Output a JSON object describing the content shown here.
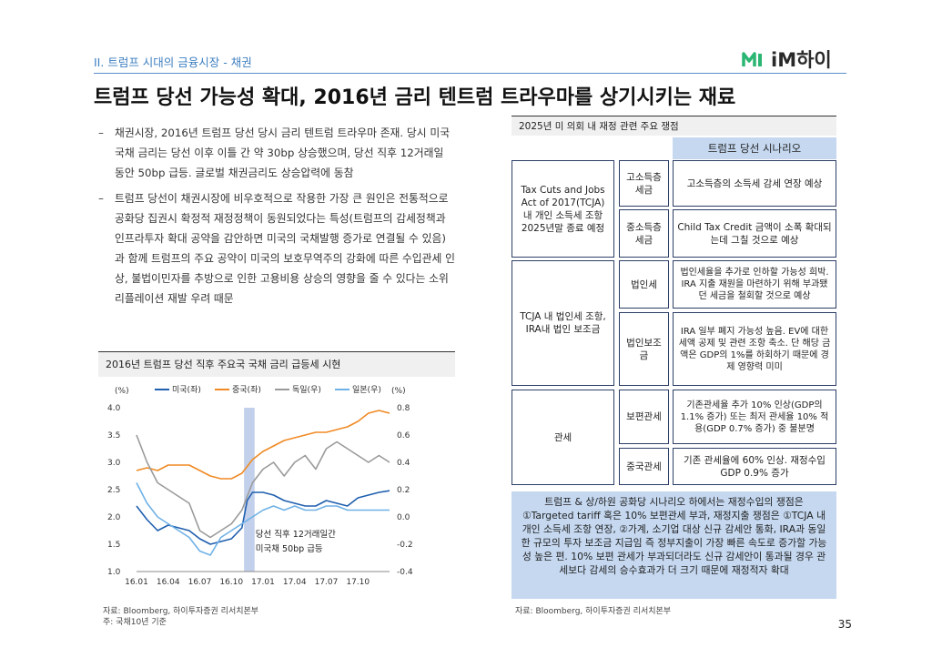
{
  "header": {
    "section": "II. 트럼프 시대의 금융시장 - 채권",
    "logo_text": "iM하이",
    "title": "트럼프 당선 가능성 확대, 2016년 금리 텐트럼 트라우마를 상기시키는 재료"
  },
  "bullets": [
    "채권시장, 2016년 트럼프 당선 당시 금리 텐트럼 트라우마 존재. 당시 미국 국채 금리는 당선 이후 이틀 간 약 30bp 상승했으며, 당선 직후 12거래일 동안 50bp 급등. 글로벌 채권금리도 상승압력에 동참",
    "트럼프 당선이 채권시장에 비우호적으로 작용한 가장 큰 원인은 전통적으로 공화당 집권시 확정적 재정정책이 동원되었다는 특성(트럼프의 감세정책과 인프라투자 확대 공약을 감안하면 미국의 국채발행 증가로 연결될 수 있음)과 함께 트럼프의 주요 공약이 미국의 보호무역주의 강화에 따른 수입관세 인상, 불법이민자를 추방으로 인한 고용비용 상승의 영향을 줄 수 있다는 소위 리플레이션 재발 우려 때문"
  ],
  "chart_title": "2016년 트럼프 당선 직후 주요국 국채 금리 급등세 시현",
  "chart_data": {
    "type": "line",
    "title": "2016년 트럼프 당선 직후 주요국 국채 금리 급등세 시현",
    "left_unit": "(%)",
    "right_unit": "(%)",
    "x_ticks": [
      "16.01",
      "16.04",
      "16.07",
      "16.10",
      "17.01",
      "17.04",
      "17.07",
      "17.10"
    ],
    "x_range": [
      0,
      24
    ],
    "left_ylim": [
      1.0,
      4.0
    ],
    "left_ticks": [
      "4.0",
      "3.5",
      "3.0",
      "2.5",
      "2.0",
      "1.5",
      "1.0"
    ],
    "right_ylim": [
      -0.4,
      0.8
    ],
    "right_ticks": [
      "0.8",
      "0.6",
      "0.4",
      "0.2",
      "0.0",
      "-0.2",
      "-0.4"
    ],
    "shaded_period": [
      10.2,
      11.2
    ],
    "annotation_lines": [
      "당선 직후 12거래일간",
      "미국채 50bp 급등"
    ],
    "series": [
      {
        "name": "미국(좌)",
        "axis": "left",
        "color": "#1f5fae",
        "x": [
          0,
          1,
          2,
          3,
          4,
          5,
          6,
          7,
          8,
          9,
          10,
          10.5,
          11,
          12,
          13,
          14,
          15,
          16,
          17,
          18,
          19,
          20,
          21,
          22,
          23,
          24
        ],
        "values": [
          2.2,
          1.95,
          1.75,
          1.85,
          1.8,
          1.75,
          1.6,
          1.5,
          1.55,
          1.6,
          1.8,
          2.3,
          2.45,
          2.45,
          2.4,
          2.3,
          2.25,
          2.2,
          2.2,
          2.3,
          2.25,
          2.2,
          2.35,
          2.4,
          2.45,
          2.48
        ]
      },
      {
        "name": "중국(좌)",
        "axis": "left",
        "color": "#f08a24",
        "x": [
          0,
          1,
          2,
          3,
          4,
          5,
          6,
          7,
          8,
          9,
          10,
          11,
          12,
          13,
          14,
          15,
          16,
          17,
          18,
          19,
          20,
          21,
          22,
          23,
          24
        ],
        "values": [
          2.85,
          2.9,
          2.85,
          2.95,
          2.95,
          2.95,
          2.85,
          2.75,
          2.7,
          2.7,
          2.8,
          3.05,
          3.2,
          3.3,
          3.4,
          3.45,
          3.5,
          3.55,
          3.55,
          3.6,
          3.65,
          3.75,
          3.9,
          3.95,
          3.9
        ]
      },
      {
        "name": "독일(우)",
        "axis": "right",
        "color": "#9a9a9a",
        "x": [
          0,
          1,
          2,
          3,
          4,
          5,
          6,
          7,
          8,
          9,
          10,
          11,
          12,
          13,
          14,
          15,
          16,
          17,
          18,
          19,
          20,
          21,
          22,
          23,
          24
        ],
        "values": [
          0.6,
          0.4,
          0.25,
          0.2,
          0.15,
          0.1,
          -0.1,
          -0.15,
          -0.1,
          -0.05,
          0.05,
          0.25,
          0.35,
          0.4,
          0.3,
          0.4,
          0.45,
          0.35,
          0.5,
          0.55,
          0.5,
          0.45,
          0.4,
          0.45,
          0.4
        ]
      },
      {
        "name": "일본(우)",
        "axis": "right",
        "color": "#6fb1e6",
        "x": [
          0,
          1,
          2,
          3,
          4,
          5,
          6,
          7,
          8,
          9,
          10,
          11,
          12,
          13,
          14,
          15,
          16,
          17,
          18,
          19,
          20,
          21,
          22,
          23,
          24
        ],
        "values": [
          0.25,
          0.1,
          0.0,
          -0.05,
          -0.1,
          -0.15,
          -0.25,
          -0.28,
          -0.15,
          -0.1,
          -0.05,
          0.0,
          0.05,
          0.08,
          0.05,
          0.08,
          0.05,
          0.05,
          0.08,
          0.08,
          0.05,
          0.05,
          0.05,
          0.05,
          0.05
        ]
      }
    ]
  },
  "chart_source": "자료: Bloomberg, 하이투자증권 리서치본부",
  "chart_note": "주: 국채10년 기준",
  "right_table": {
    "header": "2025년 미 의회 내 재정 관련 주요 쟁점",
    "scenario_header": "트럼프 당선 시나리오",
    "groups": [
      {
        "label": "Tax Cuts and Jobs Act of 2017(TCJA) 내 개인 소득세 조항 2025년말 종료 예정"
      },
      {
        "label": "TCJA 내 법인세 조항, IRA내 법인 보조금"
      },
      {
        "label": "관세"
      }
    ],
    "rows": [
      {
        "item": "고소득층 세금",
        "scenario": "고소득층의 소득세 감세 연장 예상"
      },
      {
        "item": "중소득층 세금",
        "scenario": "Child Tax Credit 금액이 소폭 확대되는데 그칠 것으로 예상"
      },
      {
        "item": "법인세",
        "scenario": "법인세율을 추가로 인하할 가능성 희박. IRA 지출 재원을 마련하기 위해 부과됐던 세금을 철회할 것으로 예상"
      },
      {
        "item": "법인보조금",
        "scenario": "IRA 일부 폐지 가능성 높음. EV에 대한 세액 공제 및 관련 조항 축소. 단 해당 금액은 GDP의 1%를 하회하기 때문에 경제 영향력 미미"
      },
      {
        "item": "보편관세",
        "scenario": "기존관세율 추가 10% 인상(GDP의 1.1% 증가) 또는 최저 관세율 10% 적용(GDP 0.7% 증가) 중 불분명"
      },
      {
        "item": "중국관세",
        "scenario": "기존 관세율에 60% 인상. 재정수입 GDP 0.9% 증가"
      }
    ],
    "summary": "트럼프 & 상/하원 공화당 시나리오 하에서는 재정수입의 쟁점은 ①Targeted tariff 혹은 10% 보편관세 부과, 재정지출 쟁점은 ①TCJA 내 개인 소득세 조항 연장, ②가계, 소기업 대상 신규 감세안 통화, IRA과 동일한 규모의 투자 보조금 지급임 즉 정부지출이 가장 빠른 속도로 증가할 가능성 높은 편. 10% 보편 관세가 부과되더라도 신규 감세안이 통과될 경우 관세보다 감세의 승수효과가 더 크기 때문에 재정적자 확대",
    "source": "자료: Bloomberg, 하이투자증권 리서치본부"
  },
  "page_number": "35"
}
